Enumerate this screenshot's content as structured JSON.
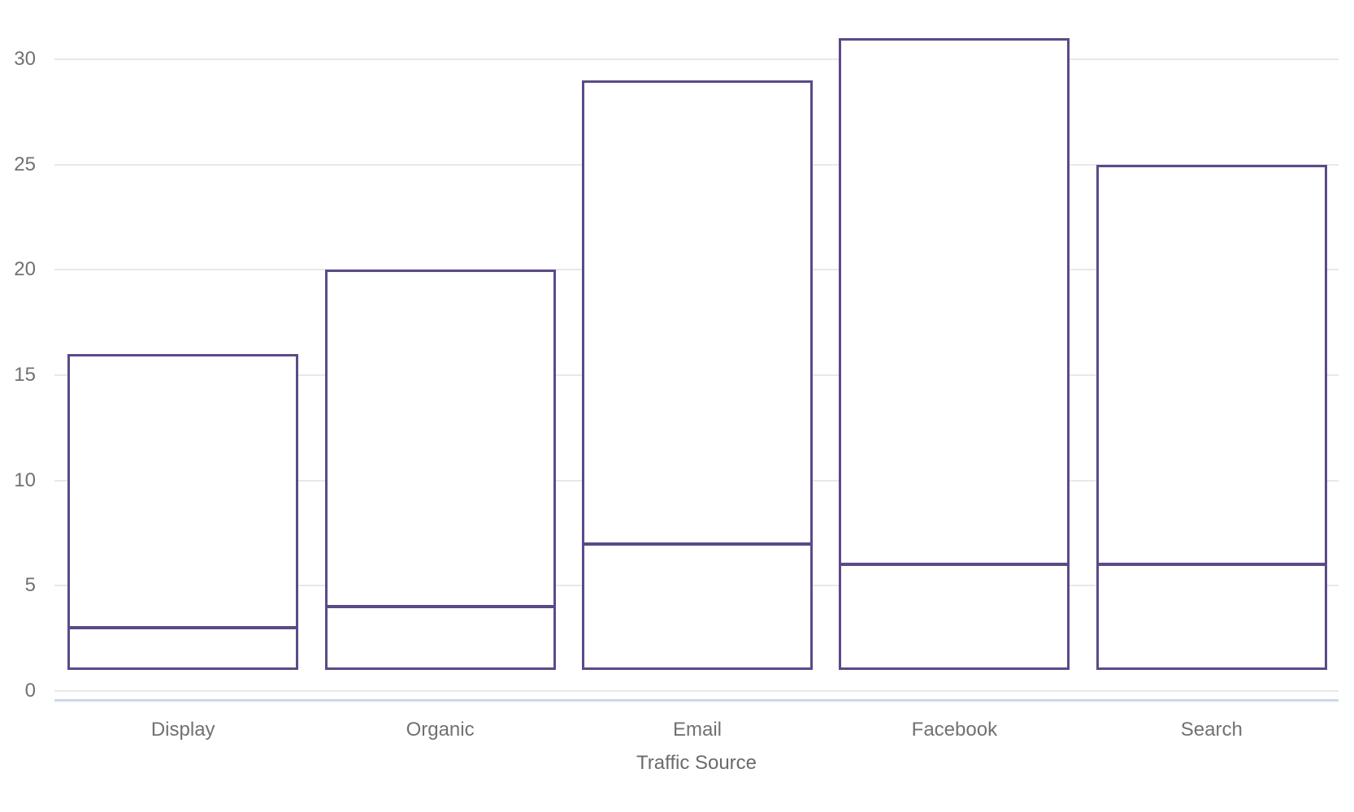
{
  "chart_data": {
    "type": "bar",
    "subtype": "range-bars-with-median-line",
    "title": "",
    "xlabel": "Traffic Source",
    "ylabel": "",
    "categories": [
      "Display",
      "Organic",
      "Email",
      "Facebook",
      "Search"
    ],
    "series": [
      {
        "name": "low",
        "values": [
          1,
          1,
          1,
          1,
          1
        ]
      },
      {
        "name": "high",
        "values": [
          16,
          20,
          29,
          31,
          25
        ]
      },
      {
        "name": "median",
        "values": [
          3,
          4,
          7,
          6,
          6
        ]
      }
    ],
    "ylim": [
      0,
      31.5
    ],
    "yticks": [
      0,
      5,
      10,
      15,
      20,
      25,
      30
    ],
    "grid": true,
    "legend": "none",
    "colors": {
      "background": "#ffffff",
      "bar_stroke": "#5b4a87",
      "bar_fill": "#ffffff",
      "median_line": "#5b4a87",
      "gridline": "#e8e8e8",
      "x_axis_line": "#ccd7ee",
      "tick_label": "#717171",
      "axis_title": "#6b6b6b"
    }
  }
}
